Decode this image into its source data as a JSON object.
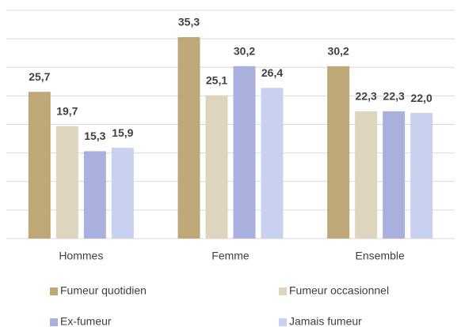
{
  "chart_data": {
    "type": "bar",
    "categories": [
      "Hommes",
      "Femme",
      "Ensemble"
    ],
    "series": [
      {
        "name": "Fumeur quotidien",
        "color": "#bfa878",
        "values": [
          25.7,
          35.3,
          30.2
        ],
        "value_labels": [
          "25,7",
          "35,3",
          "30,2"
        ]
      },
      {
        "name": "Fumeur occasionnel",
        "color": "#ddd5bd",
        "values": [
          19.7,
          25.1,
          22.3
        ],
        "value_labels": [
          "19,7",
          "25,1",
          "22,3"
        ]
      },
      {
        "name": "Ex-fumeur",
        "color": "#aab0dd",
        "values": [
          15.3,
          30.2,
          22.3
        ],
        "value_labels": [
          "15,3",
          "30,2",
          "22,3"
        ]
      },
      {
        "name": "Jamais fumeur",
        "color": "#c9d0f0",
        "values": [
          15.9,
          26.4,
          22.0
        ],
        "value_labels": [
          "15,9",
          "26,4",
          "22,0"
        ]
      }
    ],
    "ylim": [
      0,
      40
    ],
    "yticks": [
      0,
      5,
      10,
      15,
      20,
      25,
      30,
      35,
      40
    ],
    "grid": true,
    "legend": "bottom"
  }
}
